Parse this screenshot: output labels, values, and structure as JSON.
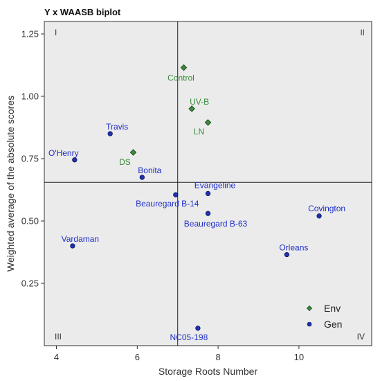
{
  "chart_data": {
    "type": "scatter",
    "title": "Y x WAASB biplot",
    "xlabel": "Storage Roots Number",
    "ylabel": "Weighted average of the absolute scores",
    "xlim": [
      3.7,
      11.8
    ],
    "ylim": [
      0,
      1.3
    ],
    "xticks": [
      4,
      6,
      8,
      10
    ],
    "yticks": [
      0.25,
      0.5,
      0.75,
      1.0,
      1.25
    ],
    "ytick_labels": [
      "0.25",
      "0.50",
      "0.75",
      "1.00",
      "1.25"
    ],
    "reference_lines": {
      "x": 7.0,
      "y": 0.655
    },
    "quadrant_labels": [
      "I",
      "II",
      "III",
      "IV"
    ],
    "legend_position": "bottom-right",
    "grid": false,
    "colors": {
      "background": "#ebebeb",
      "env_fill": "#3a8a3a",
      "env_label": "#3a8a3a",
      "gen_fill": "#1f2fb0",
      "gen_label": "#1f2fc8"
    },
    "series": [
      {
        "name": "Env",
        "marker": "diamond",
        "points": [
          {
            "label": "Control",
            "x": 7.15,
            "y": 1.115
          },
          {
            "label": "UV-B",
            "x": 7.35,
            "y": 0.95
          },
          {
            "label": "LN",
            "x": 7.75,
            "y": 0.895
          },
          {
            "label": "DS",
            "x": 5.9,
            "y": 0.775
          }
        ]
      },
      {
        "name": "Gen",
        "marker": "circle",
        "points": [
          {
            "label": "Travis",
            "x": 5.33,
            "y": 0.85
          },
          {
            "label": "O'Henry",
            "x": 4.45,
            "y": 0.745
          },
          {
            "label": "Bonita",
            "x": 6.12,
            "y": 0.675
          },
          {
            "label": "Evangeline",
            "x": 7.75,
            "y": 0.61
          },
          {
            "label": "Beauregard B-14",
            "x": 6.95,
            "y": 0.605
          },
          {
            "label": "Beauregard B-63",
            "x": 7.75,
            "y": 0.53
          },
          {
            "label": "Covington",
            "x": 10.5,
            "y": 0.52
          },
          {
            "label": "Vardaman",
            "x": 4.4,
            "y": 0.4
          },
          {
            "label": "Orleans",
            "x": 9.7,
            "y": 0.365
          },
          {
            "label": "NC05-198",
            "x": 7.5,
            "y": 0.07
          }
        ]
      }
    ]
  }
}
